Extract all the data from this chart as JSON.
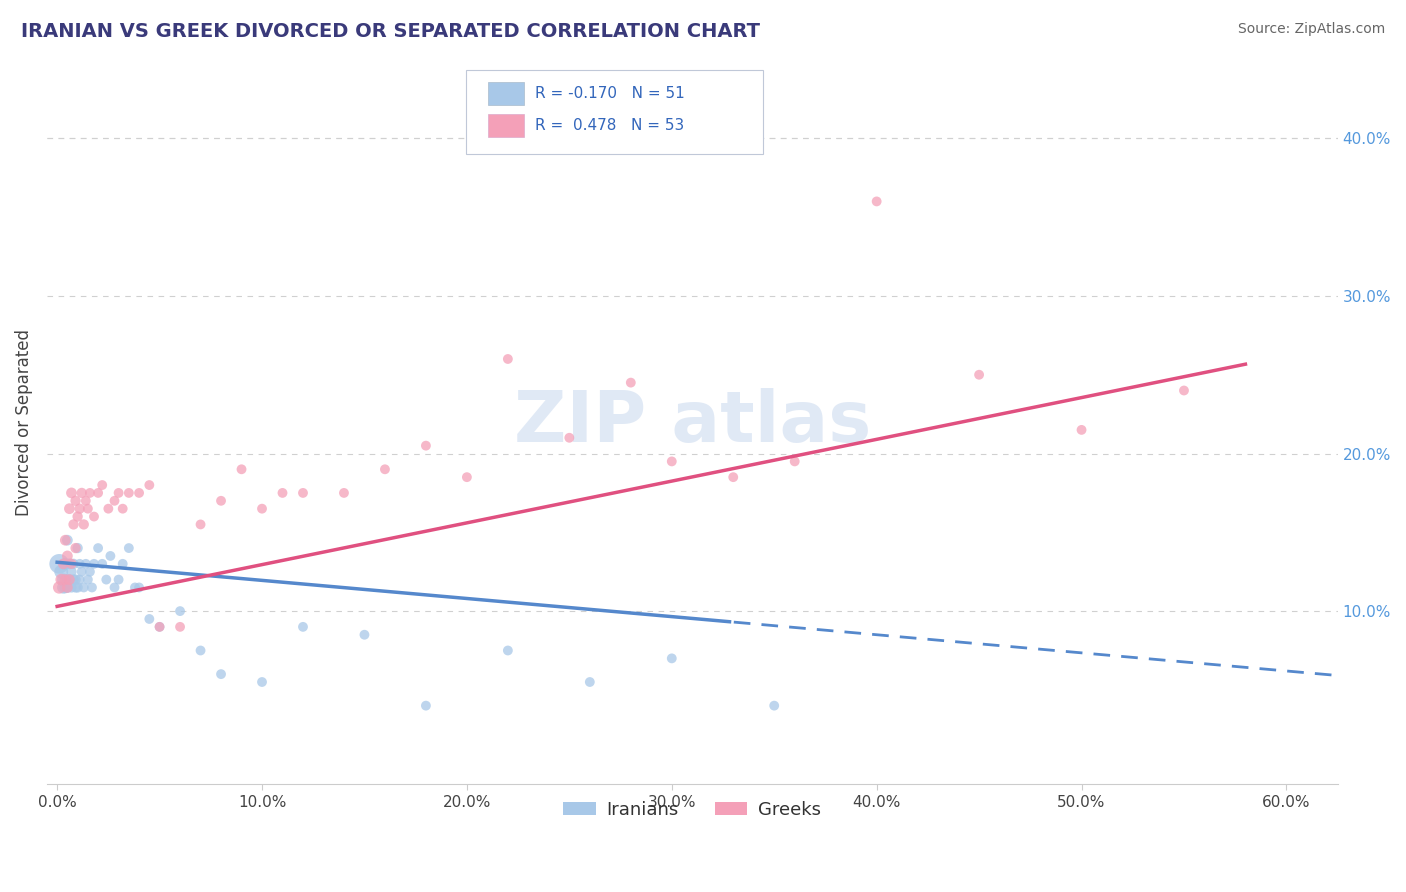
{
  "title": "IRANIAN VS GREEK DIVORCED OR SEPARATED CORRELATION CHART",
  "source": "Source: ZipAtlas.com",
  "ylabel": "Divorced or Separated",
  "x_ticks": [
    0.0,
    0.1,
    0.2,
    0.3,
    0.4,
    0.5,
    0.6
  ],
  "x_tick_labels": [
    "0.0%",
    "10.0%",
    "20.0%",
    "30.0%",
    "40.0%",
    "50.0%",
    "60.0%"
  ],
  "y_ticks_right": [
    0.1,
    0.2,
    0.3,
    0.4
  ],
  "y_tick_labels_right": [
    "10.0%",
    "20.0%",
    "30.0%",
    "40.0%"
  ],
  "xlim": [
    -0.005,
    0.625
  ],
  "ylim": [
    -0.01,
    0.45
  ],
  "legend_label_blue": "Iranians",
  "legend_label_pink": "Greeks",
  "blue_color": "#a8c8e8",
  "pink_color": "#f4a0b8",
  "blue_line_color": "#5588cc",
  "pink_line_color": "#e05080",
  "title_color": "#3a3a7a",
  "source_color": "#666666",
  "background_color": "#ffffff",
  "grid_color": "#d0d0d0",
  "blue_x": [
    0.001,
    0.002,
    0.003,
    0.003,
    0.004,
    0.004,
    0.005,
    0.005,
    0.005,
    0.006,
    0.006,
    0.007,
    0.007,
    0.008,
    0.008,
    0.009,
    0.009,
    0.01,
    0.01,
    0.011,
    0.011,
    0.012,
    0.013,
    0.014,
    0.015,
    0.016,
    0.017,
    0.018,
    0.02,
    0.022,
    0.024,
    0.026,
    0.028,
    0.03,
    0.032,
    0.035,
    0.038,
    0.04,
    0.045,
    0.05,
    0.06,
    0.07,
    0.08,
    0.1,
    0.12,
    0.15,
    0.18,
    0.22,
    0.26,
    0.3,
    0.35
  ],
  "blue_y": [
    0.13,
    0.125,
    0.12,
    0.115,
    0.13,
    0.115,
    0.145,
    0.115,
    0.12,
    0.13,
    0.12,
    0.115,
    0.125,
    0.12,
    0.13,
    0.115,
    0.12,
    0.14,
    0.115,
    0.13,
    0.12,
    0.125,
    0.115,
    0.13,
    0.12,
    0.125,
    0.115,
    0.13,
    0.14,
    0.13,
    0.12,
    0.135,
    0.115,
    0.12,
    0.13,
    0.14,
    0.115,
    0.115,
    0.095,
    0.09,
    0.1,
    0.075,
    0.06,
    0.055,
    0.09,
    0.085,
    0.04,
    0.075,
    0.055,
    0.07,
    0.04
  ],
  "blue_sizes": [
    200,
    100,
    80,
    80,
    70,
    70,
    60,
    60,
    60,
    60,
    60,
    55,
    55,
    55,
    55,
    55,
    55,
    55,
    55,
    50,
    50,
    50,
    50,
    50,
    50,
    50,
    50,
    50,
    50,
    50,
    50,
    50,
    50,
    50,
    50,
    50,
    50,
    50,
    50,
    50,
    50,
    50,
    50,
    50,
    50,
    50,
    50,
    50,
    50,
    50,
    50
  ],
  "pink_x": [
    0.001,
    0.002,
    0.003,
    0.004,
    0.004,
    0.005,
    0.005,
    0.006,
    0.006,
    0.007,
    0.007,
    0.008,
    0.009,
    0.009,
    0.01,
    0.011,
    0.012,
    0.013,
    0.014,
    0.015,
    0.016,
    0.018,
    0.02,
    0.022,
    0.025,
    0.028,
    0.03,
    0.032,
    0.035,
    0.04,
    0.045,
    0.05,
    0.06,
    0.07,
    0.08,
    0.09,
    0.1,
    0.11,
    0.12,
    0.14,
    0.16,
    0.18,
    0.2,
    0.22,
    0.25,
    0.28,
    0.3,
    0.33,
    0.36,
    0.4,
    0.45,
    0.5,
    0.55
  ],
  "pink_y": [
    0.115,
    0.12,
    0.13,
    0.145,
    0.12,
    0.135,
    0.115,
    0.165,
    0.12,
    0.175,
    0.13,
    0.155,
    0.17,
    0.14,
    0.16,
    0.165,
    0.175,
    0.155,
    0.17,
    0.165,
    0.175,
    0.16,
    0.175,
    0.18,
    0.165,
    0.17,
    0.175,
    0.165,
    0.175,
    0.175,
    0.18,
    0.09,
    0.09,
    0.155,
    0.17,
    0.19,
    0.165,
    0.175,
    0.175,
    0.175,
    0.19,
    0.205,
    0.185,
    0.26,
    0.21,
    0.245,
    0.195,
    0.185,
    0.195,
    0.36,
    0.25,
    0.215,
    0.24
  ],
  "pink_sizes": [
    80,
    70,
    60,
    60,
    60,
    60,
    60,
    60,
    60,
    60,
    55,
    55,
    55,
    55,
    55,
    55,
    55,
    55,
    50,
    50,
    50,
    50,
    50,
    50,
    50,
    50,
    50,
    50,
    50,
    50,
    50,
    50,
    50,
    50,
    50,
    50,
    50,
    50,
    50,
    50,
    50,
    50,
    50,
    50,
    50,
    50,
    50,
    50,
    50,
    50,
    50,
    50,
    50
  ],
  "blue_line_start_x": 0.0,
  "blue_line_end_x": 0.625,
  "blue_line_solid_end": 0.33,
  "blue_line_y_intercept": 0.131,
  "blue_line_slope": -0.115,
  "pink_line_start_x": 0.0,
  "pink_line_end_x": 0.58,
  "pink_line_y_intercept": 0.103,
  "pink_line_slope": 0.265
}
